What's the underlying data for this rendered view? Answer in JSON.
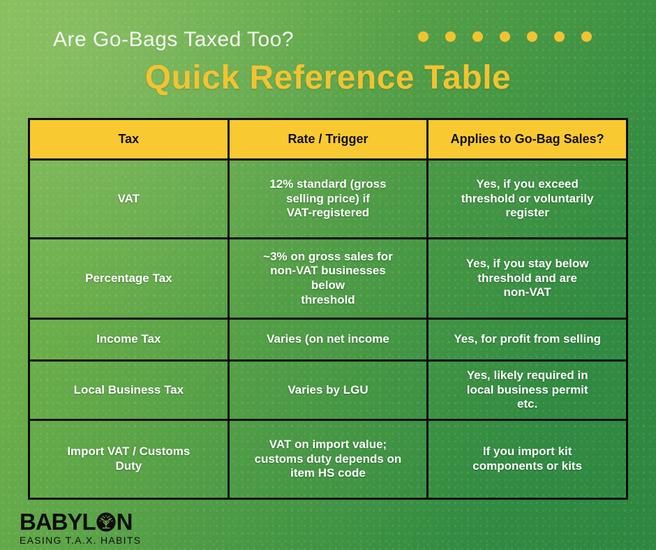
{
  "page": {
    "subtitle": "Are Go-Bags Taxed Too?",
    "title": "Quick Reference Table"
  },
  "decor": {
    "dot_count": 7,
    "dot_color": "#F2C331"
  },
  "colors": {
    "title_yellow": "#F2C331",
    "header_yellow": "#F9C932",
    "background_green_light": "#7CB84E",
    "background_green_dark": "#2E8740",
    "table_border_black": "#0E0E0E",
    "cell_text_white": "#FFFFFF"
  },
  "table": {
    "headers": [
      "Tax",
      "Rate / Trigger",
      "Applies to Go-Bag Sales?"
    ],
    "rows": [
      {
        "tax": "VAT",
        "rate": "12% standard (gross\nselling price) if\nVAT-registered",
        "applies": "Yes, if you exceed\nthreshold or voluntarily\nregister"
      },
      {
        "tax": "Percentage Tax",
        "rate": "~3% on gross sales for\nnon-VAT businesses\nbelow\nthreshold",
        "applies": "Yes, if you stay below\nthreshold and are\nnon-VAT"
      },
      {
        "tax": "Income Tax",
        "rate": "Varies (on net income",
        "applies": "Yes, for profit from selling"
      },
      {
        "tax": "Local Business Tax",
        "rate": "Varies by LGU",
        "applies": "Yes, likely required in\nlocal business permit\netc."
      },
      {
        "tax": "Import VAT / Customs\nDuty",
        "rate": "VAT on import value;\ncustoms duty depends on\nitem HS code",
        "applies": "If you import kit\ncomponents or kits"
      }
    ]
  },
  "footer": {
    "brand_prefix": "BABYL",
    "brand_suffix": "N",
    "tagline": "EASING T.A.X. HABITS"
  },
  "chart_data": {
    "type": "table",
    "title": "Quick Reference Table",
    "subtitle": "Are Go-Bags Taxed Too?",
    "columns": [
      "Tax",
      "Rate / Trigger",
      "Applies to Go-Bag Sales?"
    ],
    "rows": [
      [
        "VAT",
        "12% standard (gross selling price) if VAT-registered",
        "Yes, if you exceed threshold or voluntarily register"
      ],
      [
        "Percentage Tax",
        "~3% on gross sales for non-VAT businesses below threshold",
        "Yes, if you stay below threshold and are non-VAT"
      ],
      [
        "Income Tax",
        "Varies (on net income",
        "Yes, for profit from selling"
      ],
      [
        "Local Business Tax",
        "Varies by LGU",
        "Yes, likely required in local business permit etc."
      ],
      [
        "Import VAT / Customs Duty",
        "VAT on import value; customs duty depends on item HS code",
        "If you import kit components or kits"
      ]
    ]
  }
}
